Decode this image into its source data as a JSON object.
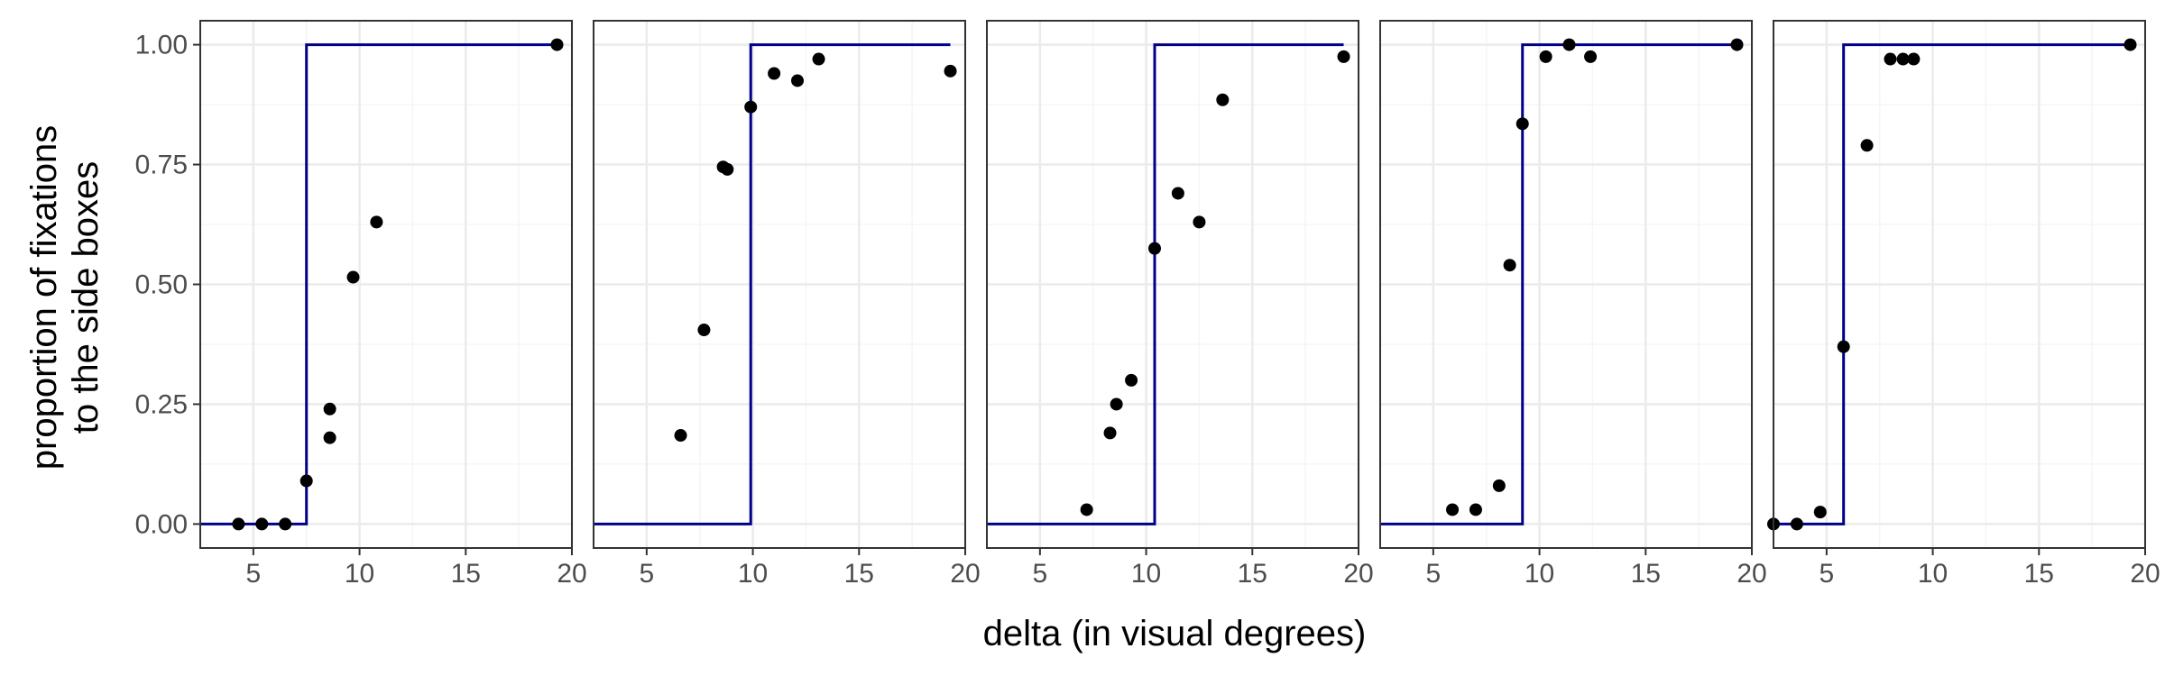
{
  "colors": {
    "step_line": "#00008B",
    "point": "#000000",
    "grid_major": "#ebebeb",
    "grid_minor": "#f5f5f5",
    "panel_border": "#333333",
    "tick_text": "#4d4d4d",
    "background": "#ffffff"
  },
  "axis_titles": {
    "x": "delta (in visual degrees)",
    "y_line1": "proportion of fixations",
    "y_line2": "to the side boxes"
  },
  "chart_data": {
    "type": "scatter",
    "overlay": "step-line",
    "layout": "small-multiples",
    "panels_count": 5,
    "grid": true,
    "xlabel": "delta (in visual degrees)",
    "ylabel": "proportion of fixations to the side boxes",
    "xlim": [
      2.5,
      20
    ],
    "ylim": [
      -0.05,
      1.05
    ],
    "x_ticks": [
      5,
      10,
      15,
      20
    ],
    "x_tick_labels": [
      "5",
      "10",
      "15",
      "20"
    ],
    "y_ticks": [
      0,
      0.25,
      0.5,
      0.75,
      1
    ],
    "y_tick_labels": [
      "0.00",
      "0.25",
      "0.50",
      "0.75",
      "1.00"
    ],
    "panels": [
      {
        "threshold": 7.5,
        "step_x_range": [
          2.5,
          19.3
        ],
        "points": [
          {
            "x": 4.3,
            "y": 0.0
          },
          {
            "x": 5.4,
            "y": 0.0
          },
          {
            "x": 6.5,
            "y": 0.0
          },
          {
            "x": 7.5,
            "y": 0.09
          },
          {
            "x": 8.6,
            "y": 0.24
          },
          {
            "x": 8.6,
            "y": 0.18
          },
          {
            "x": 9.7,
            "y": 0.515
          },
          {
            "x": 10.8,
            "y": 0.63
          },
          {
            "x": 19.3,
            "y": 1.0
          }
        ]
      },
      {
        "threshold": 9.9,
        "step_x_range": [
          2.5,
          19.3
        ],
        "points": [
          {
            "x": 6.6,
            "y": 0.185
          },
          {
            "x": 7.7,
            "y": 0.405
          },
          {
            "x": 8.6,
            "y": 0.745
          },
          {
            "x": 8.8,
            "y": 0.74
          },
          {
            "x": 9.9,
            "y": 0.87
          },
          {
            "x": 11.0,
            "y": 0.94
          },
          {
            "x": 12.1,
            "y": 0.925
          },
          {
            "x": 13.1,
            "y": 0.97
          },
          {
            "x": 19.3,
            "y": 0.945
          }
        ]
      },
      {
        "threshold": 10.4,
        "step_x_range": [
          2.5,
          19.3
        ],
        "points": [
          {
            "x": 7.2,
            "y": 0.03
          },
          {
            "x": 8.3,
            "y": 0.19
          },
          {
            "x": 8.6,
            "y": 0.25
          },
          {
            "x": 9.3,
            "y": 0.3
          },
          {
            "x": 10.4,
            "y": 0.575
          },
          {
            "x": 11.5,
            "y": 0.69
          },
          {
            "x": 12.5,
            "y": 0.63
          },
          {
            "x": 13.6,
            "y": 0.885
          },
          {
            "x": 19.3,
            "y": 0.975
          }
        ]
      },
      {
        "threshold": 9.2,
        "step_x_range": [
          2.5,
          19.3
        ],
        "points": [
          {
            "x": 5.9,
            "y": 0.03
          },
          {
            "x": 7.0,
            "y": 0.03
          },
          {
            "x": 8.1,
            "y": 0.08
          },
          {
            "x": 8.6,
            "y": 0.54
          },
          {
            "x": 9.2,
            "y": 0.835
          },
          {
            "x": 10.3,
            "y": 0.975
          },
          {
            "x": 11.4,
            "y": 1.0
          },
          {
            "x": 12.4,
            "y": 0.975
          },
          {
            "x": 19.3,
            "y": 1.0
          }
        ]
      },
      {
        "threshold": 5.8,
        "step_x_range": [
          2.5,
          19.3
        ],
        "points": [
          {
            "x": 2.5,
            "y": 0.0
          },
          {
            "x": 3.6,
            "y": 0.0
          },
          {
            "x": 4.7,
            "y": 0.025
          },
          {
            "x": 5.8,
            "y": 0.37
          },
          {
            "x": 6.9,
            "y": 0.79
          },
          {
            "x": 8.0,
            "y": 0.97
          },
          {
            "x": 8.6,
            "y": 0.97
          },
          {
            "x": 9.1,
            "y": 0.97
          },
          {
            "x": 19.3,
            "y": 1.0
          }
        ]
      }
    ]
  }
}
